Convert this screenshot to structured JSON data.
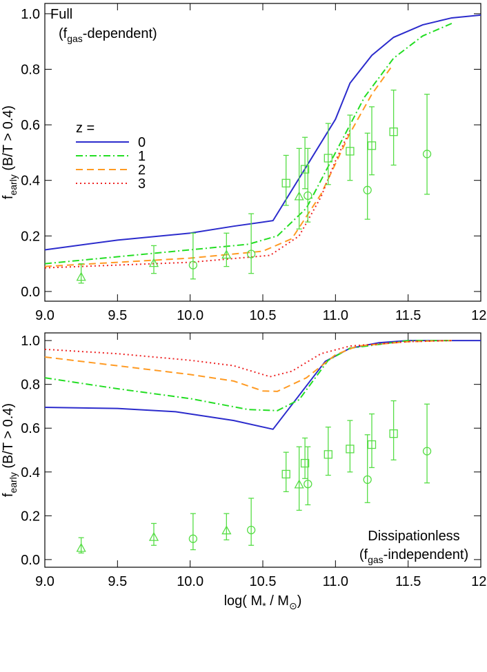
{
  "chart_data": [
    {
      "type": "line",
      "annotation": {
        "title": "Full",
        "label": [
          "(f",
          "gas",
          "-dependent)"
        ],
        "corner": "upper left"
      },
      "ylabel": [
        "f",
        "early",
        " (B/T > 0.4)"
      ],
      "xlim": [
        9,
        12
      ],
      "ylim": [
        -0.035,
        1.037
      ],
      "xticks": [
        {
          "value": 9,
          "label": "9.0"
        },
        9.5,
        {
          "value": 10,
          "label": "10.0"
        },
        10.5,
        {
          "value": 11,
          "label": "11.0"
        },
        11.5,
        {
          "value": 12,
          "label": "12."
        }
      ],
      "yticks": [
        {
          "value": 0,
          "label": "0.0"
        },
        0.2,
        0.4,
        0.6,
        0.8,
        {
          "value": 1,
          "label": "1.0"
        }
      ],
      "legend": {
        "title": "z =",
        "corner": "upper left"
      },
      "series": [
        {
          "name": "0",
          "color": "#2b2bcc",
          "dash": "solid",
          "x": [
            9.0,
            9.5,
            10.0,
            10.3,
            10.57,
            10.8,
            11.0,
            11.1,
            11.25,
            11.4,
            11.6,
            11.8,
            12.0
          ],
          "values": [
            0.15,
            0.185,
            0.21,
            0.235,
            0.255,
            0.45,
            0.62,
            0.75,
            0.85,
            0.915,
            0.96,
            0.985,
            0.995
          ]
        },
        {
          "name": "1",
          "color": "#22dd22",
          "dash": "dashdot",
          "x": [
            9.0,
            9.5,
            10.0,
            10.4,
            10.6,
            10.8,
            11.0,
            11.2,
            11.4,
            11.6,
            11.8
          ],
          "values": [
            0.1,
            0.125,
            0.15,
            0.17,
            0.2,
            0.3,
            0.5,
            0.7,
            0.84,
            0.92,
            0.965
          ]
        },
        {
          "name": "2",
          "color": "#ff9a22",
          "dash": "dashed",
          "x": [
            9.0,
            9.5,
            10.0,
            10.5,
            10.7,
            10.9,
            11.1,
            11.25,
            11.38
          ],
          "values": [
            0.09,
            0.105,
            0.12,
            0.145,
            0.19,
            0.35,
            0.57,
            0.71,
            0.805
          ]
        },
        {
          "name": "3",
          "color": "#ee2222",
          "dash": "dotted",
          "x": [
            9.0,
            9.5,
            10.0,
            10.55,
            10.75,
            10.9,
            11.0,
            11.1
          ],
          "values": [
            0.085,
            0.095,
            0.105,
            0.13,
            0.2,
            0.34,
            0.47,
            0.58
          ]
        },
        {
          "marker": "triangle",
          "color": "#55dd44",
          "x": [
            9.25,
            9.75,
            10.25,
            10.75
          ],
          "values": [
            0.05,
            0.1,
            0.13,
            0.34
          ],
          "low": [
            0.03,
            0.065,
            0.09,
            0.225
          ],
          "high": [
            0.1,
            0.165,
            0.21,
            0.515
          ]
        },
        {
          "marker": "circle",
          "color": "#55dd44",
          "x": [
            10.02,
            10.42,
            10.81,
            11.22,
            11.63
          ],
          "values": [
            0.095,
            0.135,
            0.345,
            0.365,
            0.495
          ],
          "low": [
            0.045,
            0.065,
            0.25,
            0.26,
            0.35
          ],
          "high": [
            0.21,
            0.28,
            0.515,
            0.57,
            0.71
          ]
        },
        {
          "marker": "square",
          "color": "#55dd44",
          "x": [
            10.66,
            10.79,
            10.95,
            11.1,
            11.25,
            11.4
          ],
          "values": [
            0.39,
            0.44,
            0.48,
            0.505,
            0.525,
            0.575
          ],
          "low": [
            0.31,
            0.37,
            0.385,
            0.4,
            0.42,
            0.455
          ],
          "high": [
            0.49,
            0.555,
            0.605,
            0.635,
            0.665,
            0.725
          ]
        }
      ]
    },
    {
      "type": "line",
      "annotation": {
        "title": "Dissipationless",
        "label": [
          "(f",
          "gas",
          "-independent)"
        ],
        "corner": "lower right"
      },
      "ylabel": [
        "f",
        "early",
        " (B/T > 0.4)"
      ],
      "xlabel": [
        "log( M",
        "*",
        " / M",
        "⊙",
        ")"
      ],
      "xlim": [
        9,
        12
      ],
      "ylim": [
        -0.035,
        1.035
      ],
      "xticks": [
        {
          "value": 9,
          "label": "9.0"
        },
        9.5,
        {
          "value": 10,
          "label": "10.0"
        },
        10.5,
        {
          "value": 11,
          "label": "11.0"
        },
        11.5,
        {
          "value": 12,
          "label": "12."
        }
      ],
      "yticks": [
        {
          "value": 0,
          "label": "0.0"
        },
        0.2,
        0.4,
        0.6,
        0.8,
        {
          "value": 1,
          "label": "1.0"
        }
      ],
      "series": [
        {
          "color": "#2b2bcc",
          "dash": "solid",
          "x": [
            9.0,
            9.5,
            9.9,
            10.3,
            10.57,
            10.93,
            11.1,
            11.3,
            11.5,
            12.0
          ],
          "values": [
            0.695,
            0.69,
            0.675,
            0.635,
            0.595,
            0.905,
            0.965,
            0.99,
            1.0,
            1.0
          ]
        },
        {
          "color": "#22dd22",
          "dash": "dashdot",
          "x": [
            9.0,
            9.5,
            10.0,
            10.4,
            10.6,
            10.75,
            10.95,
            11.1,
            11.5,
            11.8
          ],
          "values": [
            0.83,
            0.78,
            0.735,
            0.685,
            0.68,
            0.73,
            0.91,
            0.965,
            1.0,
            1.0
          ]
        },
        {
          "color": "#ff9a22",
          "dash": "dashed",
          "x": [
            9.0,
            9.5,
            10.0,
            10.3,
            10.5,
            10.6,
            10.8,
            11.0,
            11.15,
            11.5,
            11.8
          ],
          "values": [
            0.925,
            0.885,
            0.845,
            0.815,
            0.77,
            0.768,
            0.83,
            0.935,
            0.975,
            0.995,
            1.0
          ]
        },
        {
          "color": "#ee2222",
          "dash": "dotted",
          "x": [
            9.0,
            9.5,
            10.0,
            10.3,
            10.55,
            10.7,
            10.9,
            11.1,
            11.5,
            11.8
          ],
          "values": [
            0.96,
            0.94,
            0.91,
            0.885,
            0.835,
            0.86,
            0.94,
            0.975,
            0.995,
            1.0
          ]
        },
        {
          "marker": "triangle",
          "color": "#55dd44",
          "x": [
            9.25,
            9.75,
            10.25,
            10.75
          ],
          "values": [
            0.05,
            0.1,
            0.13,
            0.34
          ],
          "low": [
            0.03,
            0.065,
            0.09,
            0.225
          ],
          "high": [
            0.1,
            0.165,
            0.21,
            0.515
          ]
        },
        {
          "marker": "circle",
          "color": "#55dd44",
          "x": [
            10.02,
            10.42,
            10.81,
            11.22,
            11.63
          ],
          "values": [
            0.095,
            0.135,
            0.345,
            0.365,
            0.495
          ],
          "low": [
            0.045,
            0.065,
            0.25,
            0.26,
            0.35
          ],
          "high": [
            0.21,
            0.28,
            0.515,
            0.57,
            0.71
          ]
        },
        {
          "marker": "square",
          "color": "#55dd44",
          "x": [
            10.66,
            10.79,
            10.95,
            11.1,
            11.25,
            11.4
          ],
          "values": [
            0.39,
            0.44,
            0.48,
            0.505,
            0.525,
            0.575
          ],
          "low": [
            0.31,
            0.37,
            0.385,
            0.4,
            0.42,
            0.455
          ],
          "high": [
            0.49,
            0.555,
            0.605,
            0.635,
            0.665,
            0.725
          ]
        }
      ]
    }
  ]
}
